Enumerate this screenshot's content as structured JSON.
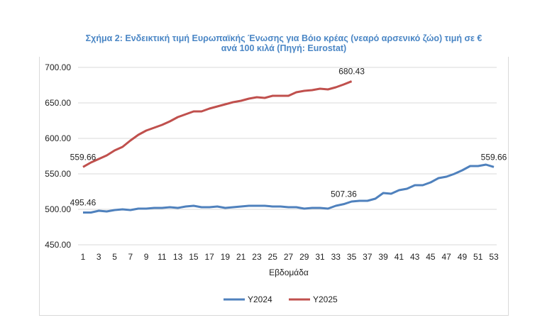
{
  "chart_data": {
    "type": "line",
    "title": "Σχήμα 2: Ενδεικτική τιμή Ευρωπαϊκής Ένωσης για Βόιο κρέας (νεαρό αρσενικό ζώο) τιμή σε € ανά 100 κιλά (Πηγή: Eurostat)",
    "title_line1": "Σχήμα 2: Ενδεικτική τιμή Ευρωπαϊκής  Ένωσης για Βόιο κρέας (νεαρό αρσενικό ζώο) τιμή σε €",
    "title_line2": "ανά 100 κιλά (Πηγή: Eurostat)",
    "xlabel": "Εβδομάδα",
    "ylabel": "",
    "ylim": [
      450,
      700
    ],
    "yticks": [
      "450.00",
      "500.00",
      "550.00",
      "600.00",
      "650.00",
      "700.00"
    ],
    "xticks": [
      1,
      3,
      5,
      7,
      9,
      11,
      13,
      15,
      17,
      19,
      21,
      23,
      25,
      27,
      29,
      31,
      33,
      35,
      37,
      39,
      41,
      43,
      45,
      47,
      49,
      51,
      53
    ],
    "grid": true,
    "legend_position": "bottom",
    "series": [
      {
        "name": "Y2024",
        "color": "#4f81bd",
        "x_start": 1,
        "values": [
          495.46,
          495.5,
          498,
          497,
          499,
          500,
          499,
          501,
          501,
          502,
          502,
          503,
          502,
          504,
          505,
          503,
          503,
          504,
          502,
          503,
          504,
          505,
          505,
          505,
          504,
          504,
          503,
          503,
          501,
          502,
          502,
          501,
          505,
          507.36,
          511,
          512,
          512,
          515,
          523,
          522,
          527,
          529,
          534,
          534,
          538,
          544,
          546,
          550,
          555,
          561,
          561,
          563,
          559.66
        ],
        "labels": [
          {
            "week": 1,
            "text": "495.46"
          },
          {
            "week": 34,
            "text": "507.36"
          },
          {
            "week": 53,
            "text": "559.66"
          }
        ]
      },
      {
        "name": "Y2025",
        "color": "#c0504d",
        "x_start": 1,
        "values": [
          559.66,
          566,
          571,
          576,
          583,
          588,
          597,
          605,
          611,
          615,
          619,
          624,
          630,
          634,
          638,
          638,
          642,
          645,
          648,
          651,
          653,
          656,
          658,
          657,
          660,
          660,
          660,
          665,
          667,
          668,
          670,
          669,
          672,
          676,
          680.43
        ],
        "labels": [
          {
            "week": 1,
            "text": "559.66"
          },
          {
            "week": 35,
            "text": "680.43"
          }
        ]
      }
    ]
  }
}
